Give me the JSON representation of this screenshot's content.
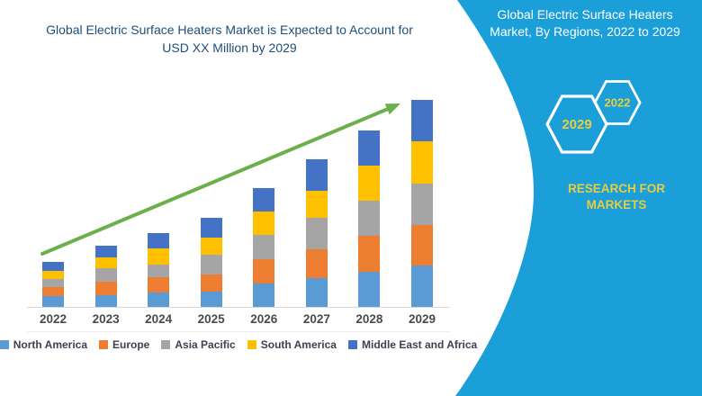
{
  "header": {
    "title_line1": "Global Electric Surface Heaters Market is Expected to Account for",
    "title_line2": "USD XX Million by 2029",
    "title_color": "#1F4E79"
  },
  "sidebar": {
    "bg_color": "#1A9FD8",
    "title_line1": "Global Electric Surface Heaters",
    "title_line2": "Market, By Regions, 2022 to 2029",
    "hexagons": [
      {
        "label": "2029"
      },
      {
        "label": "2022"
      }
    ],
    "brand_line1": "RESEARCH FOR",
    "brand_line2": "MARKETS",
    "accent_yellow": "#E9CD3E"
  },
  "chart_data": {
    "type": "bar",
    "stacked": true,
    "title": "Global Electric Surface Heaters Market is Expected to Account for USD XX Million by 2029",
    "xlabel": "",
    "ylabel": "",
    "value_axis": "none shown (values estimated in relative units from bar heights)",
    "grid": false,
    "legend_position": "bottom",
    "categories": [
      "2022",
      "2023",
      "2024",
      "2025",
      "2026",
      "2027",
      "2028",
      "2029"
    ],
    "series": [
      {
        "name": "North America",
        "color": "#5B9BD5",
        "values": [
          12,
          13,
          16,
          17,
          26,
          32,
          39,
          46
        ]
      },
      {
        "name": "Europe",
        "color": "#ED7D31",
        "values": [
          10,
          15,
          17,
          19,
          27,
          32,
          40,
          45
        ]
      },
      {
        "name": "Asia Pacific",
        "color": "#A5A5A5",
        "values": [
          9,
          15,
          14,
          22,
          27,
          35,
          39,
          46
        ]
      },
      {
        "name": "South America",
        "color": "#FFC000",
        "values": [
          9,
          12,
          18,
          19,
          26,
          30,
          39,
          47
        ]
      },
      {
        "name": "Middle East and Africa",
        "color": "#4472C4",
        "values": [
          10,
          13,
          17,
          22,
          26,
          35,
          39,
          46
        ]
      }
    ],
    "totals": [
      50,
      68,
      82,
      99,
      132,
      164,
      196,
      230
    ],
    "trend_arrow": {
      "color": "#6CB04B",
      "from_category": "2022",
      "to_category": "2029",
      "direction": "up-right"
    }
  }
}
